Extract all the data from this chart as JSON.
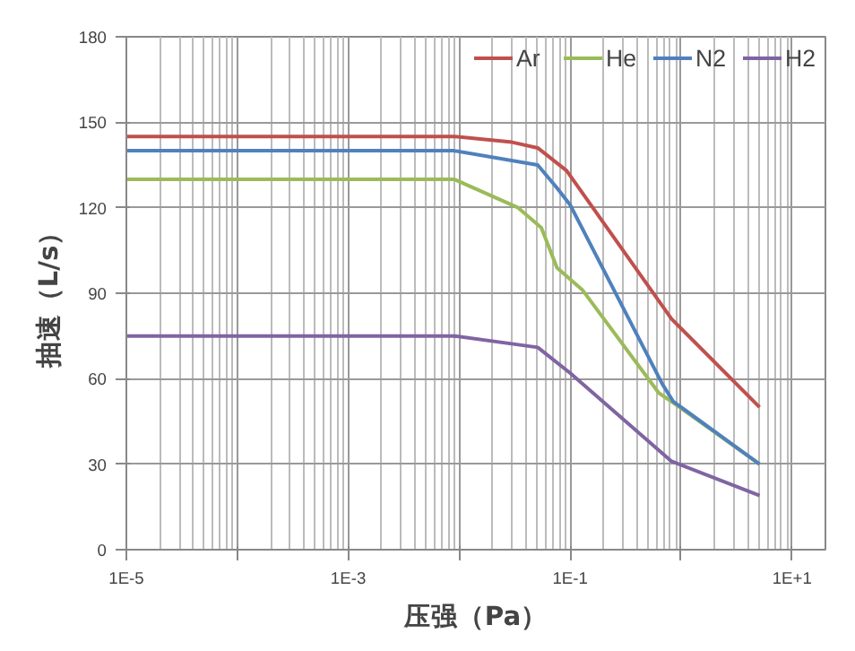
{
  "chart_data": {
    "type": "line",
    "xlabel": "压强（Pa）",
    "ylabel": "抽速（L/s）",
    "log": "x",
    "xlim": [
      1e-05,
      20
    ],
    "ylim": [
      0,
      180
    ],
    "xticks": [
      {
        "value": 1e-05,
        "label": "1E-5"
      },
      {
        "value": 0.0001,
        "label": null
      },
      {
        "value": 0.001,
        "label": "1E-3"
      },
      {
        "value": 0.01,
        "label": null
      },
      {
        "value": 0.1,
        "label": "1E-1"
      },
      {
        "value": 1,
        "label": null
      },
      {
        "value": 10,
        "label": "1E+1"
      }
    ],
    "yticks": [
      0,
      30,
      60,
      90,
      120,
      150,
      180
    ],
    "grid": true,
    "legend": "top right",
    "series": [
      {
        "name": "Ar",
        "color": "#c0504d",
        "x": [
          1e-05,
          0.009,
          0.03,
          0.051,
          0.093,
          0.82,
          5.1
        ],
        "values": [
          145,
          145,
          143,
          141,
          133,
          81,
          50
        ]
      },
      {
        "name": "He",
        "color": "#9bbb59",
        "x": [
          1e-05,
          0.009,
          0.034,
          0.055,
          0.076,
          0.13,
          0.63,
          0.82,
          5.1
        ],
        "values": [
          130,
          130,
          120,
          113,
          99,
          91,
          55,
          52,
          30
        ]
      },
      {
        "name": "N2",
        "color": "#4f81bd",
        "x": [
          1e-05,
          0.009,
          0.051,
          0.076,
          0.1,
          0.68,
          0.85,
          5.1
        ],
        "values": [
          140,
          140,
          135,
          127,
          121,
          58,
          52,
          30
        ]
      },
      {
        "name": "H2",
        "color": "#8064a2",
        "x": [
          1e-05,
          0.009,
          0.051,
          0.1,
          0.82,
          5.1
        ],
        "values": [
          75,
          75,
          71,
          62,
          31,
          19
        ]
      }
    ]
  }
}
